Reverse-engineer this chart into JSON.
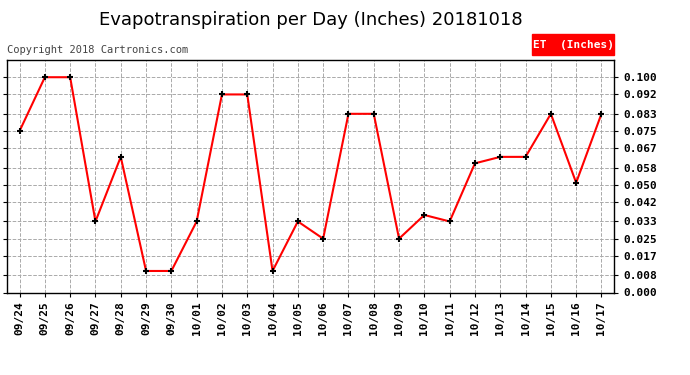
{
  "title": "Evapotranspiration per Day (Inches) 20181018",
  "copyright_text": "Copyright 2018 Cartronics.com",
  "legend_label": "ET  (Inches)",
  "legend_bg": "#ff0000",
  "legend_text_color": "#ffffff",
  "dates": [
    "09/24",
    "09/25",
    "09/26",
    "09/27",
    "09/28",
    "09/29",
    "09/30",
    "10/01",
    "10/02",
    "10/03",
    "10/04",
    "10/05",
    "10/06",
    "10/07",
    "10/08",
    "10/09",
    "10/10",
    "10/11",
    "10/12",
    "10/13",
    "10/14",
    "10/15",
    "10/16",
    "10/17"
  ],
  "values": [
    0.075,
    0.1,
    0.1,
    0.033,
    0.063,
    0.01,
    0.01,
    0.033,
    0.092,
    0.092,
    0.01,
    0.033,
    0.025,
    0.083,
    0.083,
    0.025,
    0.036,
    0.033,
    0.06,
    0.063,
    0.063,
    0.083,
    0.051,
    0.083
  ],
  "line_color": "#ff0000",
  "marker_color": "#000000",
  "bg_color": "#ffffff",
  "grid_color": "#aaaaaa",
  "ylim": [
    0.0,
    0.108
  ],
  "yticks": [
    0.0,
    0.008,
    0.017,
    0.025,
    0.033,
    0.042,
    0.05,
    0.058,
    0.067,
    0.075,
    0.083,
    0.092,
    0.1
  ],
  "title_fontsize": 13,
  "tick_fontsize": 8,
  "copyright_fontsize": 7.5
}
